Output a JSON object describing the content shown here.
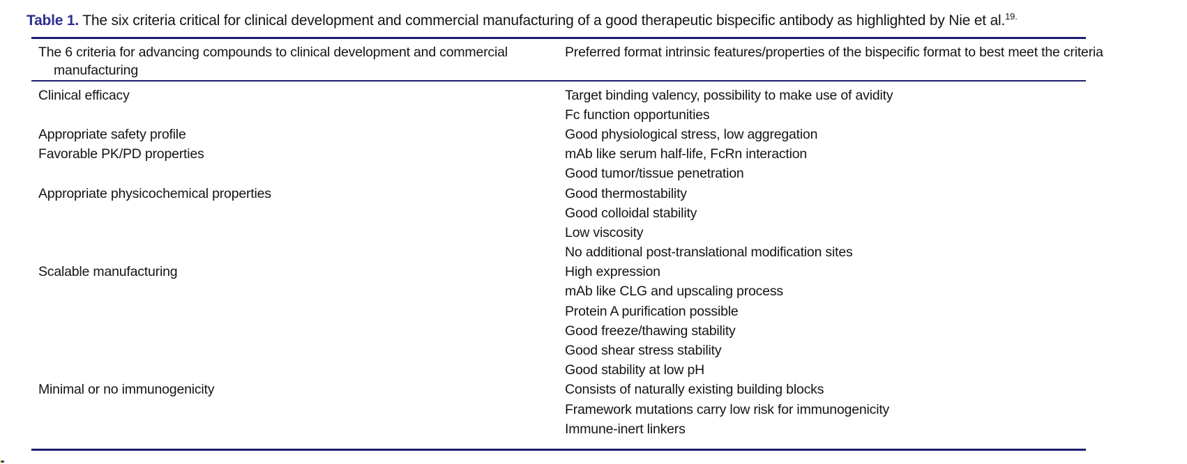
{
  "table": {
    "label": "Table 1.",
    "caption": " The six criteria critical for clinical development and commercial manufacturing of a good therapeutic bispecific antibody as highlighted by Nie et al.",
    "caption_ref": "19.",
    "columns": [
      "The 6 criteria for advancing compounds to clinical development and commercial manufacturing",
      "Preferred format intrinsic features/properties of the bispecific format to best meet the criteria"
    ],
    "rows": [
      {
        "criterion": "Clinical efficacy",
        "features": [
          "Target binding valency, possibility to make use of avidity",
          "Fc function opportunities"
        ]
      },
      {
        "criterion": "Appropriate safety profile",
        "features": [
          "Good physiological stress, low aggregation"
        ]
      },
      {
        "criterion": "Favorable PK/PD properties",
        "features": [
          "mAb like serum half-life, FcRn interaction",
          "Good tumor/tissue penetration"
        ]
      },
      {
        "criterion": "Appropriate physicochemical properties",
        "features": [
          "Good thermostability",
          "Good colloidal stability",
          "Low viscosity",
          "No additional post-translational modification sites"
        ]
      },
      {
        "criterion": "Scalable manufacturing",
        "features": [
          "High expression",
          "mAb like CLG and upscaling process",
          "Protein A purification possible",
          "Good freeze/thawing stability",
          "Good shear stress stability",
          "Good stability at low pH"
        ]
      },
      {
        "criterion": "Minimal or no immunogenicity",
        "features": [
          "Consists of naturally existing building blocks",
          "Framework mutations carry low risk for immunogenicity",
          "Immune-inert linkers"
        ]
      }
    ],
    "colors": {
      "label_blue": "#2d2f8f",
      "rule_navy": "#1f1d70",
      "artifact_colors": [
        "#d9c11e",
        "#2a2a2a",
        "#2753c4"
      ]
    }
  }
}
